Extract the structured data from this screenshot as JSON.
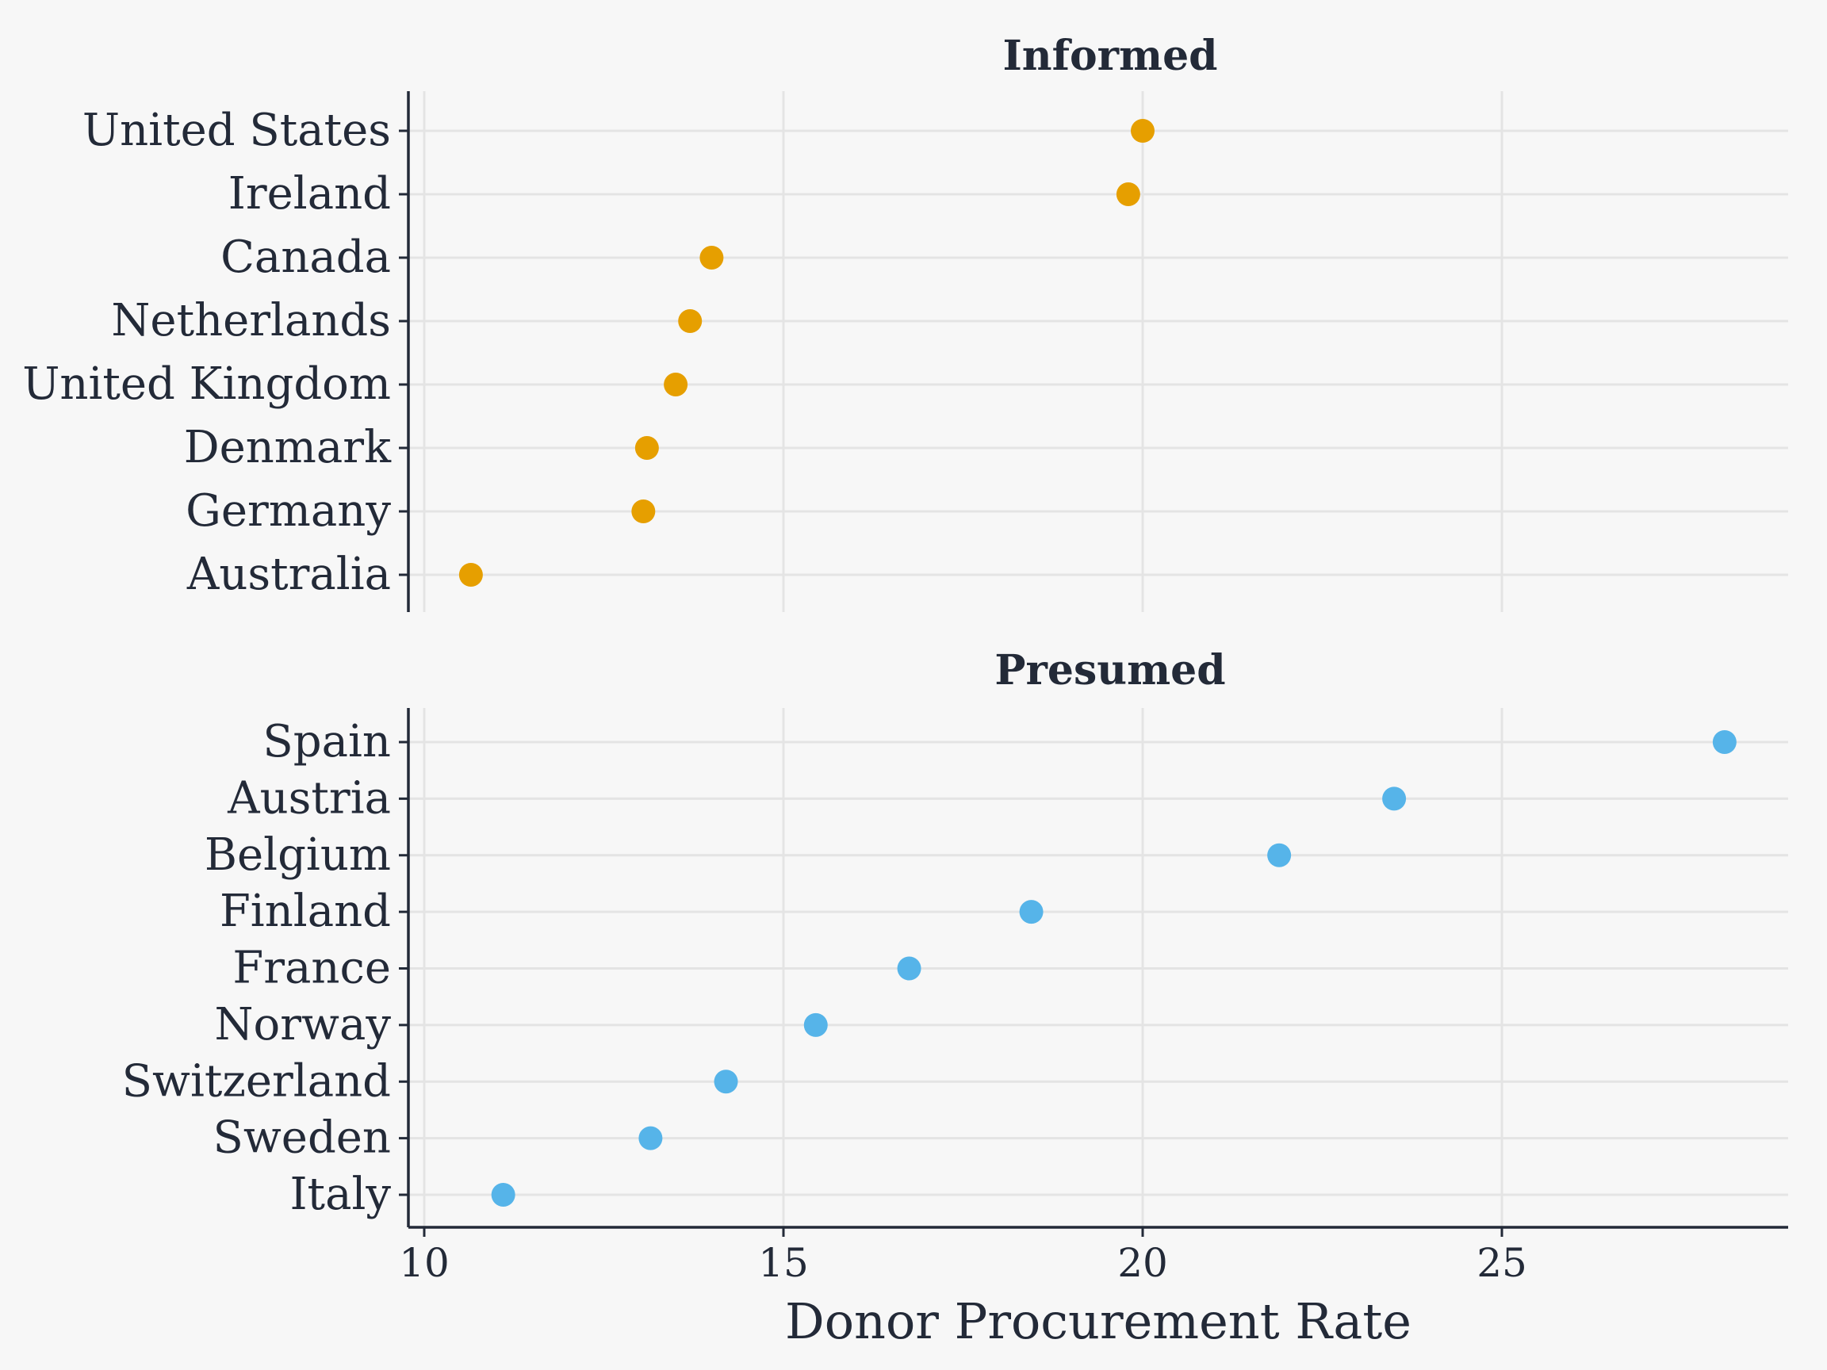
{
  "chart_data": {
    "type": "scatter",
    "xlabel": "Donor Procurement Rate",
    "xlim": [
      9.8,
      28.9
    ],
    "xticks": [
      10,
      15,
      20,
      25
    ],
    "grid": true,
    "panels": [
      {
        "title": "Informed",
        "color": "#E69F00",
        "categories": [
          "United States",
          "Ireland",
          "Canada",
          "Netherlands",
          "United Kingdom",
          "Denmark",
          "Germany",
          "Australia"
        ],
        "values": [
          20.0,
          19.8,
          14.0,
          13.7,
          13.5,
          13.1,
          13.05,
          10.65
        ]
      },
      {
        "title": "Presumed",
        "color": "#56B4E9",
        "categories": [
          "Spain",
          "Austria",
          "Belgium",
          "Finland",
          "France",
          "Norway",
          "Switzerland",
          "Sweden",
          "Italy"
        ],
        "values": [
          28.1,
          23.5,
          21.9,
          18.45,
          16.75,
          15.45,
          14.2,
          13.15,
          11.1
        ]
      }
    ]
  }
}
